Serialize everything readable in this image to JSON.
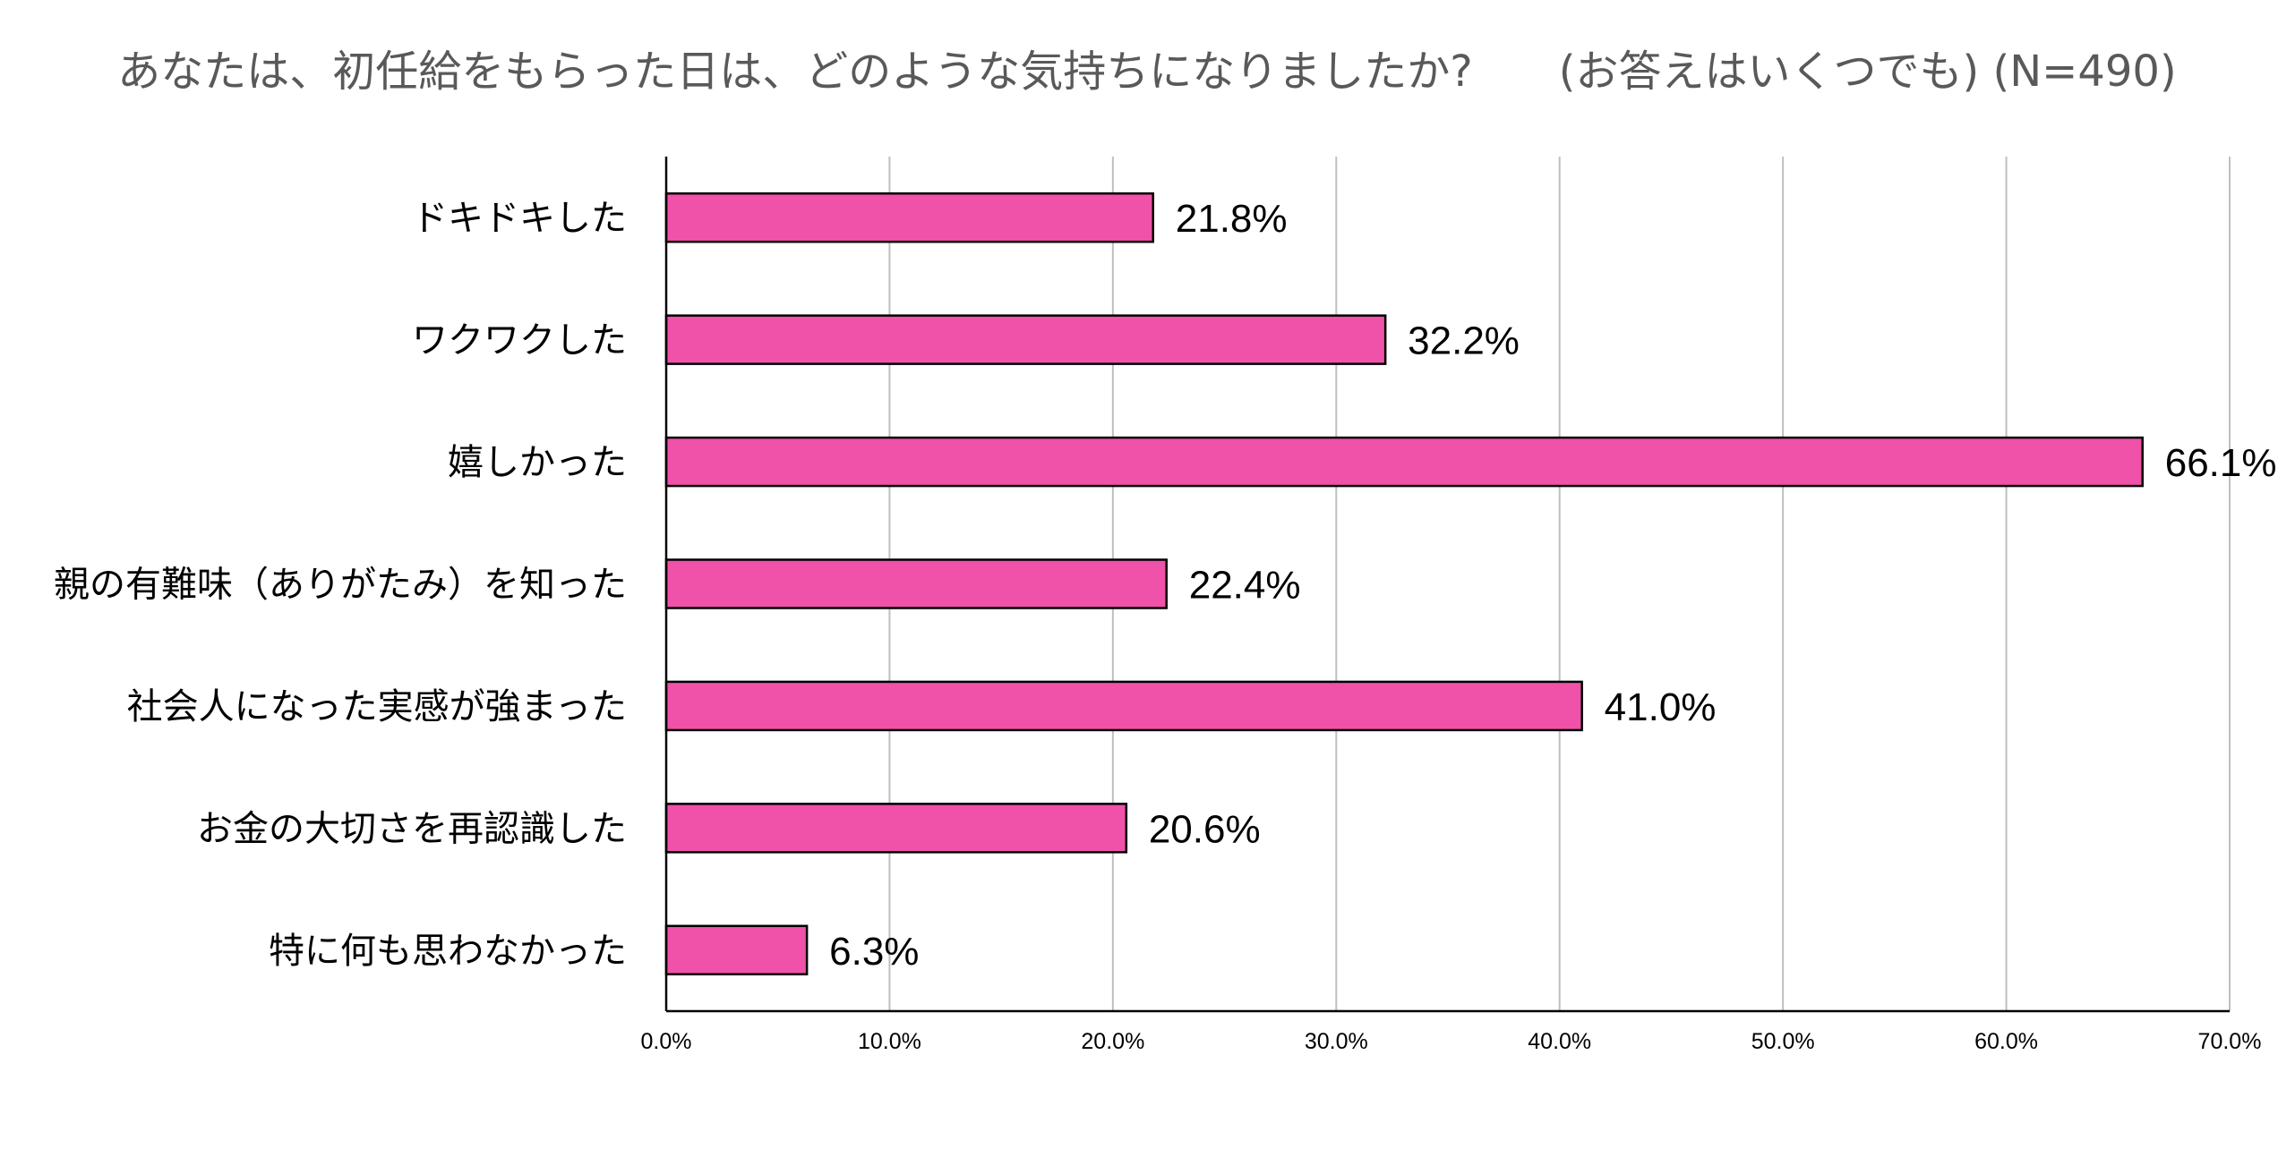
{
  "chart_data": {
    "type": "bar",
    "orientation": "horizontal",
    "title": "あなたは、初任給をもらった日は、どのような気持ちになりましたか?　　(お答えはいくつでも) (N=490)",
    "categories": [
      "ドキドキした",
      "ワクワクした",
      "嬉しかった",
      "親の有難味（ありがたみ）を知った",
      "社会人になった実感が強まった",
      "お金の大切さを再認識した",
      "特に何も思わなかった"
    ],
    "values": [
      21.8,
      32.2,
      66.1,
      22.4,
      41.0,
      20.6,
      6.3
    ],
    "value_labels": [
      "21.8%",
      "32.2%",
      "66.1%",
      "22.4%",
      "41.0%",
      "20.6%",
      "6.3%"
    ],
    "xlim": [
      0,
      70
    ],
    "x_ticks": [
      0,
      10,
      20,
      30,
      40,
      50,
      60,
      70
    ],
    "x_tick_labels": [
      "0.0%",
      "10.0%",
      "20.0%",
      "30.0%",
      "40.0%",
      "50.0%",
      "60.0%",
      "70.0%"
    ],
    "grid": true,
    "legend": "none",
    "colors": {
      "bar_fill": "#EF52A8",
      "bar_stroke": "#000000",
      "grid": "#BFBFBF",
      "title": "#595959",
      "text": "#000000",
      "axis": "#000000"
    }
  }
}
